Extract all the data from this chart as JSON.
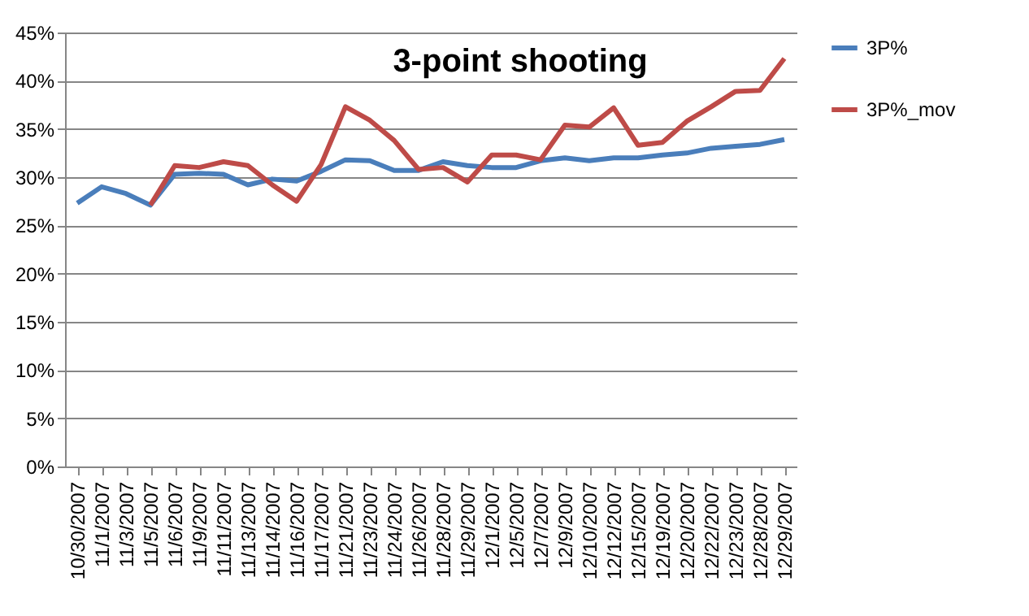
{
  "chart_data": {
    "type": "line",
    "title": "3-point shooting",
    "categories": [
      "10/30/2007",
      "11/1/2007",
      "11/3/2007",
      "11/5/2007",
      "11/6/2007",
      "11/9/2007",
      "11/11/2007",
      "11/13/2007",
      "11/14/2007",
      "11/16/2007",
      "11/17/2007",
      "11/21/2007",
      "11/23/2007",
      "11/24/2007",
      "11/26/2007",
      "11/28/2007",
      "11/29/2007",
      "12/1/2007",
      "12/5/2007",
      "12/7/2007",
      "12/9/2007",
      "12/10/2007",
      "12/12/2007",
      "12/15/2007",
      "12/19/2007",
      "12/20/2007",
      "12/22/2007",
      "12/23/2007",
      "12/28/2007",
      "12/29/2007"
    ],
    "series": [
      {
        "name": "3P%",
        "color": "#4a7ebb",
        "values": [
          27.3,
          29.0,
          28.3,
          27.1,
          30.3,
          30.4,
          30.3,
          29.2,
          29.8,
          29.6,
          30.6,
          31.8,
          31.7,
          30.7,
          30.7,
          31.6,
          31.2,
          31.0,
          31.0,
          31.7,
          32.0,
          31.7,
          32.0,
          32.0,
          32.3,
          32.5,
          33.0,
          33.2,
          33.4,
          33.9
        ]
      },
      {
        "name": "3P%_mov",
        "color": "#be4b48",
        "values": [
          null,
          null,
          null,
          27.1,
          31.2,
          31.0,
          31.6,
          31.2,
          29.2,
          27.5,
          31.3,
          37.3,
          35.9,
          33.8,
          30.8,
          31.0,
          29.5,
          32.3,
          32.3,
          31.8,
          35.4,
          35.2,
          37.2,
          33.3,
          33.6,
          35.8,
          37.3,
          38.9,
          39.0,
          42.3
        ]
      }
    ],
    "ylim": [
      0,
      45
    ],
    "yticks": [
      {
        "value": 0,
        "label": "0%"
      },
      {
        "value": 5,
        "label": "5%"
      },
      {
        "value": 10,
        "label": "10%"
      },
      {
        "value": 15,
        "label": "15%"
      },
      {
        "value": 20,
        "label": "20%"
      },
      {
        "value": 25,
        "label": "25%"
      },
      {
        "value": 30,
        "label": "30%"
      },
      {
        "value": 35,
        "label": "35%"
      },
      {
        "value": 40,
        "label": "40%"
      },
      {
        "value": 45,
        "label": "45%"
      }
    ],
    "grid": "y",
    "legend": "right",
    "marker": "none",
    "line_style": "solid"
  }
}
